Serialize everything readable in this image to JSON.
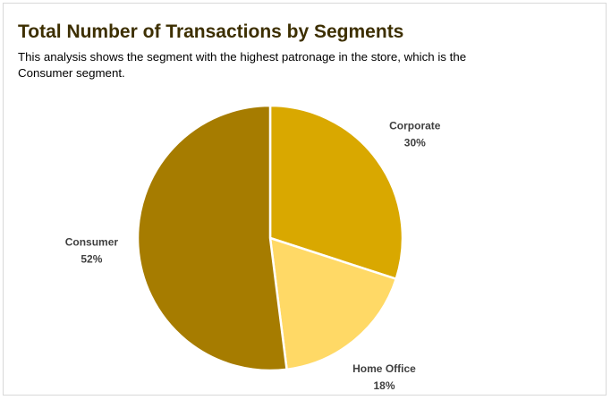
{
  "title": "Total Number of Transactions by Segments",
  "subtitle": "This analysis shows the segment with the highest patronage in the store, which is the Consumer segment.",
  "chart_data": {
    "type": "pie",
    "title": "Total Number of Transactions by Segments",
    "subtitle": "This analysis shows the segment with the highest patronage in the store, which is the Consumer segment.",
    "slices": [
      {
        "name": "Corporate",
        "value": 30,
        "label": "30%",
        "color": "#d9a800"
      },
      {
        "name": "Home Office",
        "value": 18,
        "label": "18%",
        "color": "#ffd966"
      },
      {
        "name": "Consumer",
        "value": 52,
        "label": "52%",
        "color": "#a67c00"
      }
    ],
    "legend": "none",
    "data_labels": "outside, name and percentage"
  }
}
